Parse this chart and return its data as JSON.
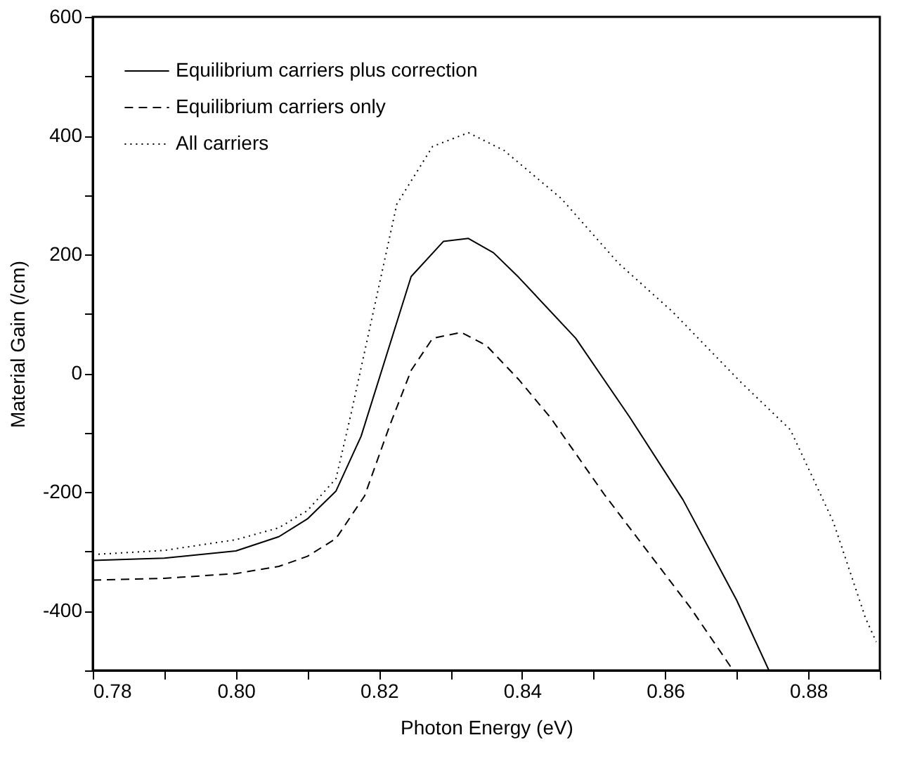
{
  "chart_data": {
    "type": "line",
    "xlabel": "Photon Energy (eV)",
    "ylabel": "Material Gain (/cm)",
    "xlim": [
      0.78,
      0.89
    ],
    "ylim": [
      -500,
      600
    ],
    "xticks": [
      0.78,
      {
        "value": 0.79,
        "label": null
      },
      {
        "value": 0.8,
        "label": "0.80"
      },
      {
        "value": 0.81,
        "label": null
      },
      0.82,
      {
        "value": 0.83,
        "label": null
      },
      0.84,
      {
        "value": 0.85,
        "label": null
      },
      0.86,
      {
        "value": 0.87,
        "label": null
      },
      0.88,
      {
        "value": 0.89,
        "label": null
      }
    ],
    "yticks": [
      {
        "value": -500,
        "label": null
      },
      -400,
      {
        "value": -300,
        "label": null
      },
      -200,
      {
        "value": -100,
        "label": null
      },
      0,
      {
        "value": 100,
        "label": null
      },
      200,
      {
        "value": 300,
        "label": null
      },
      400,
      {
        "value": 500,
        "label": null
      },
      600
    ],
    "grid": false,
    "legend": "top left",
    "marker": "none",
    "series": [
      {
        "name": "Equilibrium carriers plus correction",
        "color": "#000000",
        "line_style": "solid",
        "x": [
          0.78,
          0.79,
          0.8,
          0.806,
          0.81,
          0.814,
          0.8175,
          0.8245,
          0.829,
          0.8325,
          0.836,
          0.8395,
          0.8475,
          0.855,
          0.8625,
          0.87,
          0.8745
        ],
        "values": [
          -315,
          -311,
          -299,
          -275,
          -245,
          -198,
          -106,
          163,
          222,
          227,
          203,
          162,
          59,
          -73,
          -213,
          -382,
          -500
        ]
      },
      {
        "name": "Equilibrium carriers only",
        "color": "#000000",
        "line_style": "dashed",
        "x": [
          0.78,
          0.79,
          0.8,
          0.806,
          0.81,
          0.814,
          0.818,
          0.8215,
          0.8245,
          0.8275,
          0.8315,
          0.835,
          0.8395,
          0.844,
          0.8515,
          0.8575,
          0.8635,
          0.8695
        ],
        "values": [
          -348,
          -345,
          -337,
          -325,
          -308,
          -278,
          -206,
          -88,
          5,
          59,
          69,
          47,
          -10,
          -75,
          -204,
          -299,
          -394,
          -500
        ]
      },
      {
        "name": "All carriers",
        "color": "#000000",
        "line_style": "dotted",
        "x": [
          0.78,
          0.79,
          0.8,
          0.806,
          0.81,
          0.814,
          0.8161,
          0.8225,
          0.8275,
          0.8325,
          0.8375,
          0.8455,
          0.8535,
          0.861,
          0.8705,
          0.8775,
          0.8835,
          0.888,
          0.8895
        ],
        "values": [
          -305,
          -298,
          -280,
          -260,
          -231,
          -177,
          -68,
          285,
          382,
          405,
          375,
          294,
          185,
          104,
          -14,
          -95,
          -250,
          -412,
          -452
        ]
      }
    ]
  }
}
